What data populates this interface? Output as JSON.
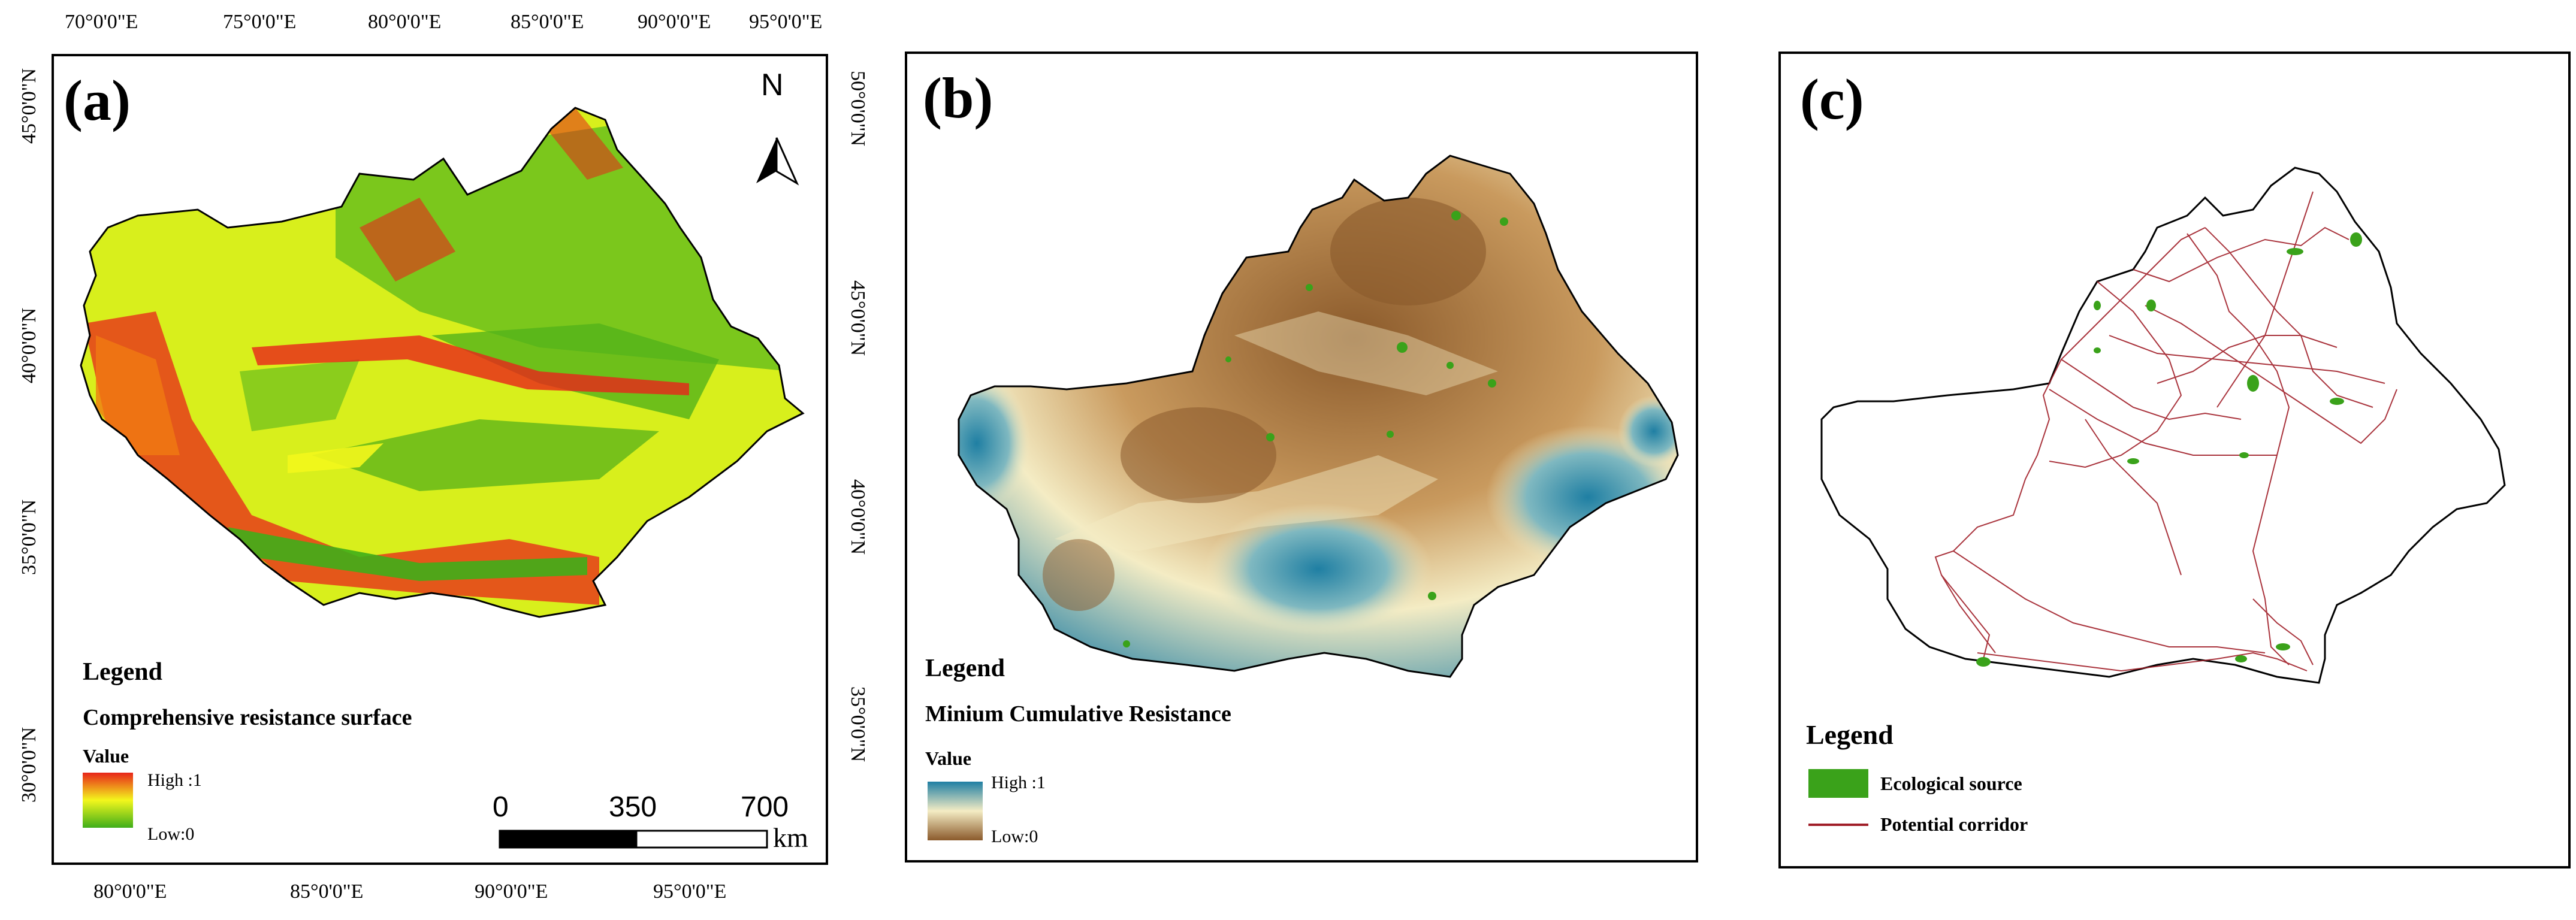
{
  "panel_a": {
    "label": "(a)",
    "top_ticks": [
      "70°0'0\"E",
      "75°0'0\"E",
      "80°0'0\"E",
      "85°0'0\"E",
      "90°0'0\"E",
      "95°0'0\"E"
    ],
    "bottom_ticks": [
      "80°0'0\"E",
      "85°0'0\"E",
      "90°0'0\"E",
      "95°0'0\"E"
    ],
    "left_ticks": [
      "45°0'0\"N",
      "40°0'0\"N",
      "35°0'0\"N",
      "30°0'0\"N"
    ],
    "right_ticks": [
      "50°0'0\"N",
      "45°0'0\"N",
      "40°0'0\"N",
      "35°0'0\"N"
    ],
    "north": "N",
    "legend_title": "Legend",
    "legend_subtitle": "Comprehensive resistance surface",
    "legend_value": "Value",
    "legend_high": "High :1",
    "legend_low": "Low:0",
    "scale_labels": [
      "0",
      "350",
      "700"
    ],
    "scale_unit": "km",
    "colors": {
      "high": "#e8241a",
      "mid": "#f3f71c",
      "low": "#3fae1a"
    }
  },
  "panel_b": {
    "label": "(b)",
    "legend_title": "Legend",
    "legend_subtitle": "Minium Cumulative Resistance",
    "legend_value": "Value",
    "legend_high": "High :1",
    "legend_low": "Low:0",
    "colors": {
      "high": "#1f7fa3",
      "mid": "#f4ecc4",
      "low": "#8b5a2b"
    }
  },
  "panel_c": {
    "label": "(c)",
    "legend_title": "Legend",
    "source_label": "Ecological source",
    "corridor_label": "Potential corridor",
    "colors": {
      "source": "#3aa21a",
      "corridor": "#a01e28"
    }
  }
}
